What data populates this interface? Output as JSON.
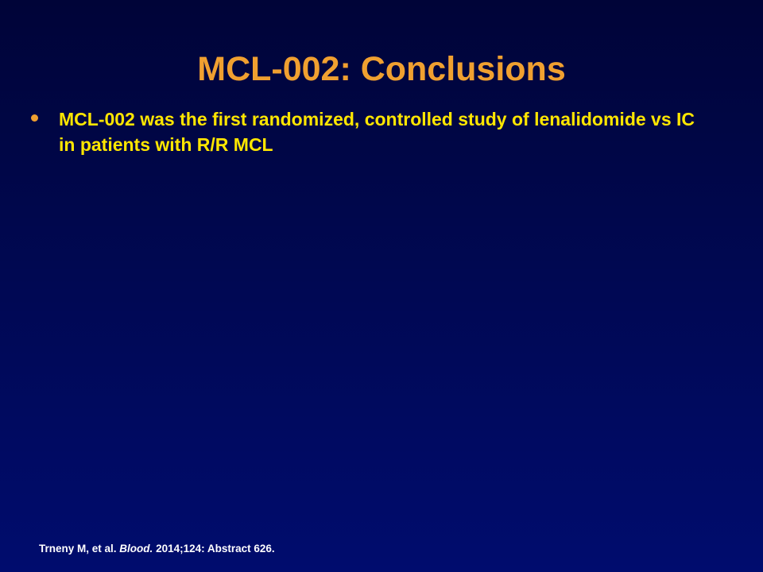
{
  "slide": {
    "title": "MCL-002: Conclusions",
    "bullets": [
      {
        "text": "MCL-002 was the first randomized, controlled study of lenalidomide vs IC in patients with R/R MCL"
      }
    ],
    "citation": {
      "authors": "Trneny M, et al.",
      "journal": "Blood.",
      "details": "2014;124: Abstract 626."
    }
  },
  "colors": {
    "title": "#f0a030",
    "bullet_text": "#ffe600",
    "bullet_marker": "#f0a030",
    "citation": "#ffffff",
    "background_top": "#000438",
    "background_bottom": "#000c6e"
  }
}
